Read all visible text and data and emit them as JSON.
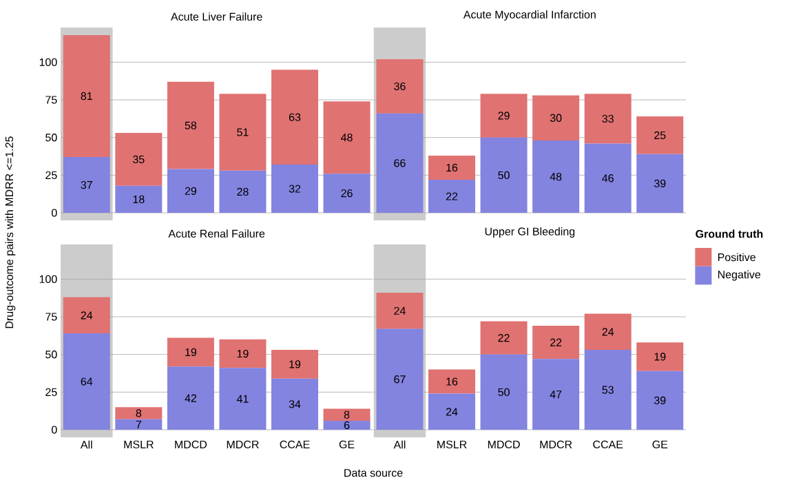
{
  "chart_data": [
    {
      "type": "bar",
      "stacked": true,
      "title": "Acute Liver Failure",
      "ylabel": "Drug-outcome pairs with MDRR <=1.25",
      "categories": [
        "All",
        "MSLR",
        "MDCD",
        "MDCR",
        "CCAE",
        "GE"
      ],
      "series": [
        {
          "name": "Negative",
          "color": "#8383e0",
          "values": [
            37,
            18,
            29,
            28,
            32,
            26
          ]
        },
        {
          "name": "Positive",
          "color": "#e07272",
          "values": [
            81,
            35,
            58,
            51,
            63,
            48
          ]
        }
      ],
      "ylim": [
        -5,
        123
      ],
      "yticks": [
        0,
        25,
        50,
        75,
        100
      ],
      "grid": "y",
      "data_labels": true,
      "tick_labels": "y",
      "legend": "right",
      "legend_title": "Ground truth",
      "bands": [
        {
          "axis": "x",
          "from": "All",
          "to": "All",
          "color": "#cccccc"
        }
      ]
    },
    {
      "type": "bar",
      "stacked": true,
      "title": "Acute Myocardial Infarction",
      "categories": [
        "All",
        "MSLR",
        "MDCD",
        "MDCR",
        "CCAE",
        "GE"
      ],
      "series": [
        {
          "color": "#8383e0",
          "values": [
            66,
            22,
            50,
            48,
            46,
            39
          ]
        },
        {
          "color": "#e07272",
          "values": [
            36,
            16,
            29,
            30,
            33,
            25
          ]
        }
      ],
      "ylim": [
        -5,
        123
      ],
      "yticks": [
        0,
        25,
        50,
        75,
        100
      ],
      "grid": "y",
      "data_labels": true,
      "tick_labels": false,
      "bands": [
        {
          "axis": "x",
          "from": "All",
          "to": "All",
          "color": "#cccccc"
        }
      ]
    },
    {
      "type": "bar",
      "stacked": true,
      "title": "Acute Renal Failure",
      "xlabel": "Data source",
      "categories": [
        "All",
        "MSLR",
        "MDCD",
        "MDCR",
        "CCAE",
        "GE"
      ],
      "series": [
        {
          "color": "#8383e0",
          "values": [
            64,
            7,
            42,
            41,
            34,
            6
          ]
        },
        {
          "color": "#e07272",
          "values": [
            24,
            8,
            19,
            19,
            19,
            8
          ]
        }
      ],
      "ylim": [
        -5,
        123
      ],
      "yticks": [
        0,
        25,
        50,
        75,
        100
      ],
      "grid": "y",
      "data_labels": true,
      "bands": [
        {
          "axis": "x",
          "from": "All",
          "to": "All",
          "color": "#cccccc"
        }
      ]
    },
    {
      "type": "bar",
      "stacked": true,
      "title": "Upper GI Bleeding",
      "categories": [
        "All",
        "MSLR",
        "MDCD",
        "MDCR",
        "CCAE",
        "GE"
      ],
      "series": [
        {
          "color": "#8383e0",
          "values": [
            67,
            24,
            50,
            47,
            53,
            39
          ]
        },
        {
          "color": "#e07272",
          "values": [
            24,
            16,
            22,
            22,
            24,
            19
          ]
        }
      ],
      "ylim": [
        -5,
        123
      ],
      "yticks": [
        0,
        25,
        50,
        75,
        100
      ],
      "grid": "y",
      "data_labels": true,
      "tick_labels": "x",
      "bands": [
        {
          "axis": "x",
          "from": "All",
          "to": "All",
          "color": "#cccccc"
        }
      ]
    }
  ]
}
